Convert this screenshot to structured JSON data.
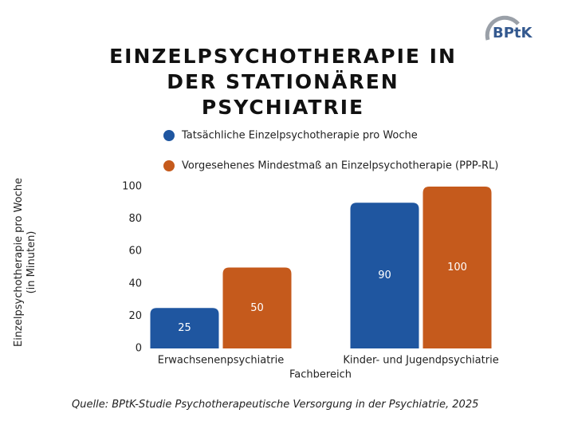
{
  "logo": "BPtK",
  "chart_data": {
    "type": "bar",
    "title": "EINZELPSYCHOTHERAPIE IN DER STATIONÄREN PSYCHIATRIE",
    "categories": [
      "Erwachsenenpsychiatrie",
      "Kinder- und Jugendpsychiatrie"
    ],
    "series": [
      {
        "name": "Tatsächliche Einzelpsychotherapie pro Woche",
        "color": "#1f56a0",
        "values": [
          25,
          90
        ]
      },
      {
        "name": "Vorgesehenes Mindestmaß an Einzelpsychotherapie (PPP-RL)",
        "color": "#c55a1c",
        "values": [
          50,
          100
        ]
      }
    ],
    "ylim": [
      0,
      100
    ],
    "yticks": [
      0,
      20,
      40,
      60,
      80,
      100
    ],
    "x_label": "Fachbereich",
    "y_label": "Einzelpsychotherapie pro Woche (in Minuten)",
    "source": "Quelle: BPtK-Studie Psychotherapeutische Versorgung in der Psychiatrie, 2025",
    "grid": false
  }
}
